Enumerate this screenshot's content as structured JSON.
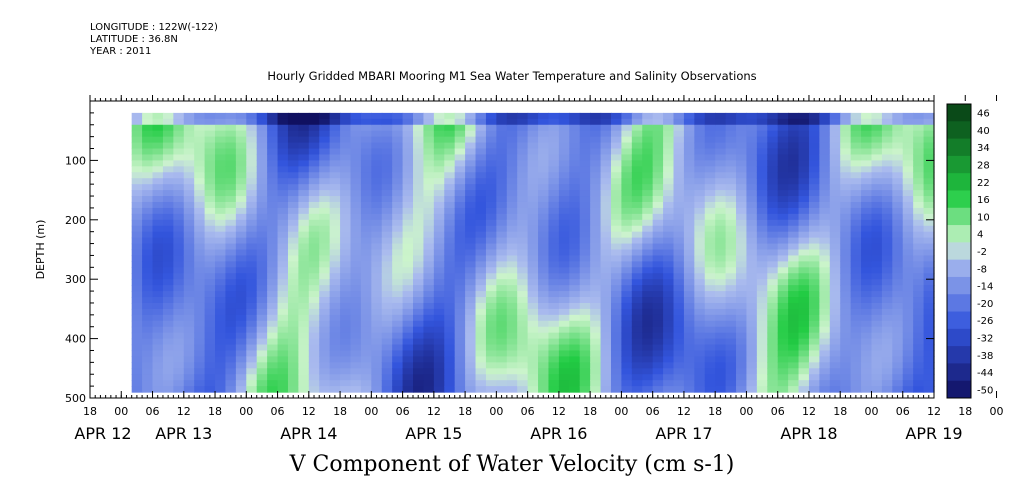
{
  "header": {
    "longitude": "LONGITUDE : 122W(-122)",
    "latitude": "LATITUDE : 36.8N",
    "year": "YEAR : 2011"
  },
  "colors": {
    "strong_negative": "#101060",
    "negative": "#3355dd",
    "near_zero": "#aabbee",
    "positive_small": "#ccf4cc",
    "positive": "#22cc44",
    "strong_positive": "#0a4a18"
  },
  "chart_data": {
    "type": "heatmap",
    "title": "Hourly Gridded MBARI Mooring M1 Sea Water Temperature and Salinity Observations",
    "xlabel": "V Component of Water Velocity (cm s-1)",
    "ylabel": "DEPTH (m)",
    "ylim": [
      500,
      0
    ],
    "y_ticks": [
      100,
      200,
      300,
      400,
      500
    ],
    "y_tick_labels": [
      "100",
      "200",
      "300",
      "400",
      "500"
    ],
    "x_hour_ticks": [
      "18",
      "00",
      "06",
      "12",
      "18",
      "00",
      "06",
      "12",
      "18",
      "00",
      "06",
      "12",
      "18",
      "00",
      "06",
      "12",
      "18",
      "00",
      "06",
      "12",
      "18",
      "00",
      "06",
      "12",
      "18",
      "00",
      "06",
      "12",
      "18",
      "00",
      "06",
      "12"
    ],
    "date_labels": [
      "APR 12",
      "APR 13",
      "APR 14",
      "APR 15",
      "APR 16",
      "APR 17",
      "APR 18",
      "APR 19"
    ],
    "data_time_range": [
      "APR 13 02:00",
      "APR 19 12:00"
    ],
    "data_depth_range": [
      20,
      490
    ],
    "colorbar": {
      "levels": [
        -50,
        -44,
        -38,
        -32,
        -26,
        -20,
        -14,
        -8,
        -2,
        4,
        10,
        16,
        22,
        28,
        34,
        40,
        46
      ],
      "labels": [
        "46",
        "40",
        "34",
        "28",
        "22",
        "16",
        "10",
        "4",
        "-2",
        "-8",
        "-14",
        "-20",
        "-26",
        "-32",
        "-38",
        "-44",
        "-50"
      ],
      "range": [
        -50,
        52
      ]
    }
  }
}
